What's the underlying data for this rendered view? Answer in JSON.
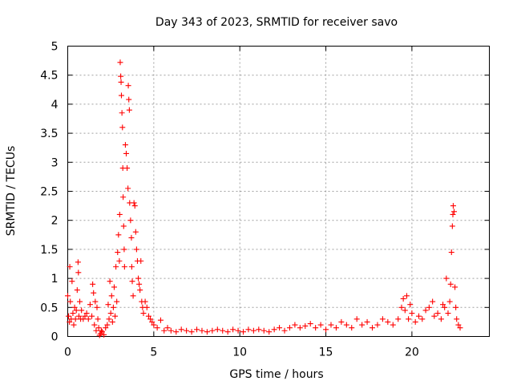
{
  "chart_data": {
    "type": "scatter",
    "title": "Day 343 of 2023, SRMTID for receiver savo",
    "xlabel": "GPS time / hours",
    "ylabel": "SRMTID / TECUs",
    "xlim": [
      0,
      24.5
    ],
    "ylim": [
      0,
      5
    ],
    "xticks": [
      0,
      5,
      10,
      15,
      20
    ],
    "xtick_labels": [
      "0",
      "5",
      "10",
      "15",
      "20"
    ],
    "yticks": [
      0,
      0.5,
      1,
      1.5,
      2,
      2.5,
      3,
      3.5,
      4,
      4.5,
      5
    ],
    "ytick_labels": [
      "0",
      "0.5",
      "1",
      "1.5",
      "2",
      "2.5",
      "3",
      "3.5",
      "4",
      "4.5",
      "5"
    ],
    "grid": true,
    "marker": "+",
    "color": "#ff0000",
    "series": [
      {
        "name": "savo",
        "points": [
          [
            0.0,
            0.7
          ],
          [
            0.05,
            0.35
          ],
          [
            0.1,
            0.25
          ],
          [
            0.12,
            1.2
          ],
          [
            0.15,
            0.6
          ],
          [
            0.2,
            0.3
          ],
          [
            0.25,
            0.95
          ],
          [
            0.3,
            0.4
          ],
          [
            0.35,
            0.2
          ],
          [
            0.4,
            0.5
          ],
          [
            0.45,
            0.3
          ],
          [
            0.5,
            0.45
          ],
          [
            0.55,
            0.8
          ],
          [
            0.6,
            1.28
          ],
          [
            0.62,
            1.1
          ],
          [
            0.65,
            0.35
          ],
          [
            0.7,
            0.6
          ],
          [
            0.75,
            0.3
          ],
          [
            0.8,
            0.45
          ],
          [
            0.9,
            0.3
          ],
          [
            1.0,
            0.35
          ],
          [
            1.1,
            0.4
          ],
          [
            1.2,
            0.3
          ],
          [
            1.3,
            0.55
          ],
          [
            1.4,
            0.35
          ],
          [
            1.45,
            0.9
          ],
          [
            1.5,
            0.75
          ],
          [
            1.55,
            0.2
          ],
          [
            1.6,
            0.6
          ],
          [
            1.65,
            0.1
          ],
          [
            1.7,
            0.5
          ],
          [
            1.75,
            0.3
          ],
          [
            1.8,
            0.15
          ],
          [
            1.85,
            0.02
          ],
          [
            1.9,
            0.05
          ],
          [
            1.95,
            0.1
          ],
          [
            2.0,
            0.08
          ],
          [
            2.1,
            0.03
          ],
          [
            2.2,
            0.15
          ],
          [
            2.3,
            0.2
          ],
          [
            2.35,
            0.55
          ],
          [
            2.4,
            0.3
          ],
          [
            2.45,
            0.95
          ],
          [
            2.5,
            0.4
          ],
          [
            2.55,
            0.7
          ],
          [
            2.6,
            0.25
          ],
          [
            2.65,
            0.5
          ],
          [
            2.7,
            0.85
          ],
          [
            2.75,
            0.35
          ],
          [
            2.8,
            1.2
          ],
          [
            2.85,
            0.6
          ],
          [
            2.9,
            1.45
          ],
          [
            2.95,
            1.75
          ],
          [
            3.0,
            1.3
          ],
          [
            3.02,
            2.1
          ],
          [
            3.05,
            4.72
          ],
          [
            3.08,
            4.48
          ],
          [
            3.1,
            4.38
          ],
          [
            3.12,
            4.15
          ],
          [
            3.15,
            3.85
          ],
          [
            3.18,
            3.6
          ],
          [
            3.2,
            2.9
          ],
          [
            3.22,
            2.4
          ],
          [
            3.25,
            1.9
          ],
          [
            3.28,
            1.5
          ],
          [
            3.3,
            1.2
          ],
          [
            3.35,
            3.3
          ],
          [
            3.4,
            3.15
          ],
          [
            3.45,
            2.9
          ],
          [
            3.5,
            2.55
          ],
          [
            3.52,
            4.32
          ],
          [
            3.55,
            4.08
          ],
          [
            3.58,
            3.9
          ],
          [
            3.6,
            2.3
          ],
          [
            3.65,
            2.0
          ],
          [
            3.7,
            1.7
          ],
          [
            3.72,
            1.2
          ],
          [
            3.75,
            0.95
          ],
          [
            3.8,
            0.7
          ],
          [
            3.85,
            2.3
          ],
          [
            3.9,
            2.25
          ],
          [
            3.95,
            1.8
          ],
          [
            4.0,
            1.5
          ],
          [
            4.05,
            1.3
          ],
          [
            4.1,
            1.0
          ],
          [
            4.15,
            0.9
          ],
          [
            4.2,
            0.8
          ],
          [
            4.25,
            1.3
          ],
          [
            4.3,
            0.6
          ],
          [
            4.35,
            0.5
          ],
          [
            4.4,
            0.4
          ],
          [
            4.5,
            0.6
          ],
          [
            4.6,
            0.5
          ],
          [
            4.7,
            0.35
          ],
          [
            4.8,
            0.3
          ],
          [
            4.9,
            0.25
          ],
          [
            5.0,
            0.2
          ],
          [
            5.2,
            0.15
          ],
          [
            5.4,
            0.28
          ],
          [
            5.6,
            0.1
          ],
          [
            5.8,
            0.15
          ],
          [
            6.0,
            0.1
          ],
          [
            6.3,
            0.08
          ],
          [
            6.6,
            0.12
          ],
          [
            6.9,
            0.1
          ],
          [
            7.2,
            0.08
          ],
          [
            7.5,
            0.12
          ],
          [
            7.8,
            0.1
          ],
          [
            8.1,
            0.08
          ],
          [
            8.4,
            0.1
          ],
          [
            8.7,
            0.12
          ],
          [
            9.0,
            0.1
          ],
          [
            9.3,
            0.08
          ],
          [
            9.6,
            0.12
          ],
          [
            9.9,
            0.1
          ],
          [
            10.2,
            0.08
          ],
          [
            10.5,
            0.12
          ],
          [
            10.8,
            0.1
          ],
          [
            11.1,
            0.12
          ],
          [
            11.4,
            0.1
          ],
          [
            11.7,
            0.08
          ],
          [
            12.0,
            0.12
          ],
          [
            12.3,
            0.15
          ],
          [
            12.6,
            0.1
          ],
          [
            12.9,
            0.15
          ],
          [
            13.2,
            0.2
          ],
          [
            13.5,
            0.15
          ],
          [
            13.8,
            0.18
          ],
          [
            14.1,
            0.22
          ],
          [
            14.4,
            0.15
          ],
          [
            14.7,
            0.2
          ],
          [
            15.0,
            0.12
          ],
          [
            15.3,
            0.2
          ],
          [
            15.6,
            0.15
          ],
          [
            15.9,
            0.25
          ],
          [
            16.2,
            0.2
          ],
          [
            16.5,
            0.15
          ],
          [
            16.8,
            0.3
          ],
          [
            17.1,
            0.2
          ],
          [
            17.4,
            0.25
          ],
          [
            17.7,
            0.15
          ],
          [
            18.0,
            0.2
          ],
          [
            18.3,
            0.3
          ],
          [
            18.6,
            0.25
          ],
          [
            18.9,
            0.2
          ],
          [
            19.2,
            0.3
          ],
          [
            19.4,
            0.5
          ],
          [
            19.5,
            0.65
          ],
          [
            19.6,
            0.45
          ],
          [
            19.7,
            0.7
          ],
          [
            19.8,
            0.3
          ],
          [
            19.9,
            0.55
          ],
          [
            20.0,
            0.4
          ],
          [
            20.2,
            0.25
          ],
          [
            20.4,
            0.35
          ],
          [
            20.6,
            0.3
          ],
          [
            20.8,
            0.45
          ],
          [
            21.0,
            0.5
          ],
          [
            21.2,
            0.6
          ],
          [
            21.3,
            0.35
          ],
          [
            21.5,
            0.4
          ],
          [
            21.7,
            0.3
          ],
          [
            21.8,
            0.55
          ],
          [
            21.9,
            0.5
          ],
          [
            22.0,
            1.0
          ],
          [
            22.1,
            0.4
          ],
          [
            22.2,
            0.6
          ],
          [
            22.25,
            0.9
          ],
          [
            22.3,
            1.45
          ],
          [
            22.35,
            1.9
          ],
          [
            22.38,
            2.1
          ],
          [
            22.4,
            2.25
          ],
          [
            22.45,
            2.15
          ],
          [
            22.5,
            0.85
          ],
          [
            22.55,
            0.5
          ],
          [
            22.6,
            0.3
          ],
          [
            22.7,
            0.2
          ],
          [
            22.8,
            0.15
          ]
        ]
      }
    ]
  }
}
